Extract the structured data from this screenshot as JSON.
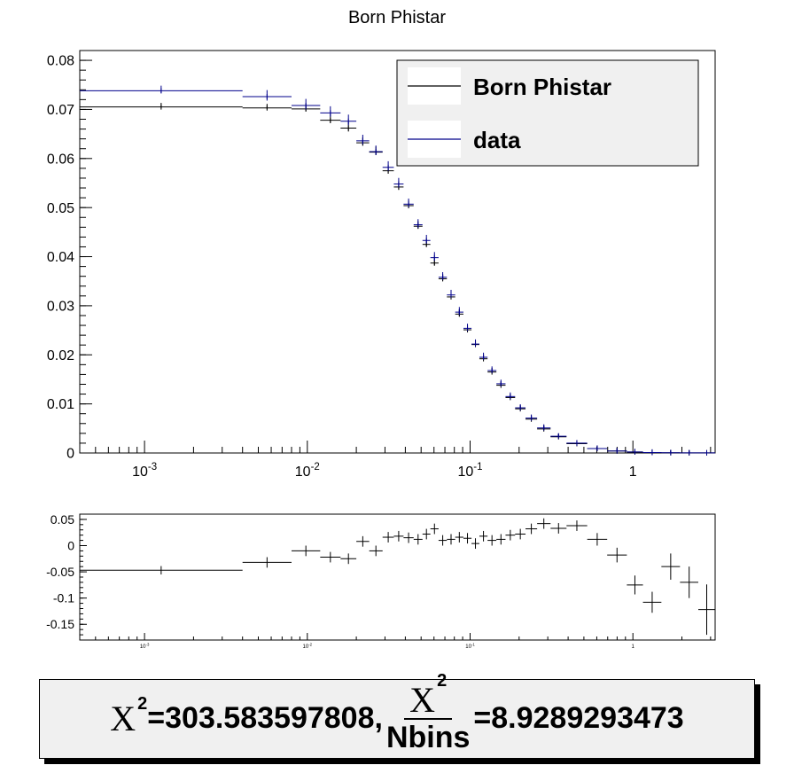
{
  "chart_data": [
    {
      "type": "scatter",
      "title": "Born Phistar",
      "xscale": "log",
      "xlim": [
        0.0004,
        3.2
      ],
      "ylim": [
        0,
        0.082
      ],
      "yticks": [
        0,
        0.01,
        0.02,
        0.03,
        0.04,
        0.05,
        0.06,
        0.07,
        0.08
      ],
      "ytick_labels": [
        "0",
        "0.01",
        "0.02",
        "0.03",
        "0.04",
        "0.05",
        "0.06",
        "0.07",
        "0.08"
      ],
      "xticks": [
        0.001,
        0.01,
        0.1,
        1
      ],
      "xtick_labels": [
        {
          "base": "10",
          "exp": "-3"
        },
        {
          "base": "10",
          "exp": "-2"
        },
        {
          "base": "10",
          "exp": "-1"
        },
        {
          "base": "1",
          "exp": ""
        }
      ],
      "legend_position": "top-right",
      "series": [
        {
          "name": "Born Phistar",
          "color": "#000000",
          "bins": [
            {
              "lo": 0.0004,
              "hi": 0.004,
              "y": 0.0705,
              "err": 0.0003
            },
            {
              "lo": 0.004,
              "hi": 0.008,
              "y": 0.0703,
              "err": 0.0003
            },
            {
              "lo": 0.008,
              "hi": 0.012,
              "y": 0.0701,
              "err": 0.0005
            },
            {
              "lo": 0.012,
              "hi": 0.016,
              "y": 0.0678,
              "err": 0.0006
            },
            {
              "lo": 0.016,
              "hi": 0.02,
              "y": 0.0662,
              "err": 0.0007
            },
            {
              "lo": 0.02,
              "hi": 0.024,
              "y": 0.0632,
              "err": 0.0006
            },
            {
              "lo": 0.024,
              "hi": 0.029,
              "y": 0.0613,
              "err": 0.0006
            },
            {
              "lo": 0.029,
              "hi": 0.034,
              "y": 0.0575,
              "err": 0.0006
            },
            {
              "lo": 0.034,
              "hi": 0.039,
              "y": 0.0542,
              "err": 0.0006
            },
            {
              "lo": 0.039,
              "hi": 0.045,
              "y": 0.0504,
              "err": 0.0005
            },
            {
              "lo": 0.045,
              "hi": 0.051,
              "y": 0.0462,
              "err": 0.0005
            },
            {
              "lo": 0.051,
              "hi": 0.057,
              "y": 0.0425,
              "err": 0.0005
            },
            {
              "lo": 0.057,
              "hi": 0.064,
              "y": 0.0387,
              "err": 0.0005
            },
            {
              "lo": 0.064,
              "hi": 0.072,
              "y": 0.0355,
              "err": 0.0004
            },
            {
              "lo": 0.072,
              "hi": 0.081,
              "y": 0.0318,
              "err": 0.0004
            },
            {
              "lo": 0.081,
              "hi": 0.091,
              "y": 0.0283,
              "err": 0.0004
            },
            {
              "lo": 0.091,
              "hi": 0.102,
              "y": 0.0251,
              "err": 0.0003
            },
            {
              "lo": 0.102,
              "hi": 0.114,
              "y": 0.0221,
              "err": 0.0003
            },
            {
              "lo": 0.114,
              "hi": 0.128,
              "y": 0.0192,
              "err": 0.0003
            },
            {
              "lo": 0.128,
              "hi": 0.145,
              "y": 0.0165,
              "err": 0.0003
            },
            {
              "lo": 0.145,
              "hi": 0.165,
              "y": 0.0138,
              "err": 0.0002
            },
            {
              "lo": 0.165,
              "hi": 0.189,
              "y": 0.0113,
              "err": 0.0002
            },
            {
              "lo": 0.189,
              "hi": 0.219,
              "y": 0.009,
              "err": 0.0002
            },
            {
              "lo": 0.219,
              "hi": 0.258,
              "y": 0.0069,
              "err": 0.0002
            },
            {
              "lo": 0.258,
              "hi": 0.312,
              "y": 0.0049,
              "err": 0.0002
            },
            {
              "lo": 0.312,
              "hi": 0.391,
              "y": 0.0033,
              "err": 0.0001
            },
            {
              "lo": 0.391,
              "hi": 0.524,
              "y": 0.0019,
              "err": 0.0001
            },
            {
              "lo": 0.524,
              "hi": 0.695,
              "y": 0.0009,
              "err": 0.0001
            },
            {
              "lo": 0.695,
              "hi": 0.918,
              "y": 0.0004,
              "err": 0.0001
            },
            {
              "lo": 0.918,
              "hi": 1.153,
              "y": 0.0002,
              "err": 0.0001
            },
            {
              "lo": 1.153,
              "hi": 1.496,
              "y": 0.0001,
              "err": 0.0001
            },
            {
              "lo": 1.496,
              "hi": 1.947,
              "y": 5e-05,
              "err": 5e-05
            },
            {
              "lo": 1.947,
              "hi": 2.522,
              "y": 3e-05,
              "err": 3e-05
            },
            {
              "lo": 2.522,
              "hi": 3.2,
              "y": 2e-05,
              "err": 2e-05
            }
          ]
        },
        {
          "name": "data",
          "color": "#00008b",
          "bins": [
            {
              "lo": 0.0004,
              "hi": 0.004,
              "y": 0.0738,
              "err": 0.0005
            },
            {
              "lo": 0.004,
              "hi": 0.008,
              "y": 0.0726,
              "err": 0.0008
            },
            {
              "lo": 0.008,
              "hi": 0.012,
              "y": 0.0708,
              "err": 0.0008
            },
            {
              "lo": 0.012,
              "hi": 0.016,
              "y": 0.0693,
              "err": 0.0008
            },
            {
              "lo": 0.016,
              "hi": 0.02,
              "y": 0.0676,
              "err": 0.0008
            },
            {
              "lo": 0.02,
              "hi": 0.024,
              "y": 0.0636,
              "err": 0.0007
            },
            {
              "lo": 0.024,
              "hi": 0.029,
              "y": 0.0614,
              "err": 0.0007
            },
            {
              "lo": 0.029,
              "hi": 0.034,
              "y": 0.0582,
              "err": 0.0007
            },
            {
              "lo": 0.034,
              "hi": 0.039,
              "y": 0.0548,
              "err": 0.0007
            },
            {
              "lo": 0.039,
              "hi": 0.045,
              "y": 0.0507,
              "err": 0.0006
            },
            {
              "lo": 0.045,
              "hi": 0.051,
              "y": 0.0465,
              "err": 0.0006
            },
            {
              "lo": 0.051,
              "hi": 0.057,
              "y": 0.0433,
              "err": 0.0006
            },
            {
              "lo": 0.057,
              "hi": 0.064,
              "y": 0.0398,
              "err": 0.0006
            },
            {
              "lo": 0.064,
              "hi": 0.072,
              "y": 0.0358,
              "err": 0.0005
            },
            {
              "lo": 0.072,
              "hi": 0.081,
              "y": 0.0322,
              "err": 0.0005
            },
            {
              "lo": 0.081,
              "hi": 0.091,
              "y": 0.0287,
              "err": 0.0005
            },
            {
              "lo": 0.091,
              "hi": 0.102,
              "y": 0.0254,
              "err": 0.0004
            },
            {
              "lo": 0.102,
              "hi": 0.114,
              "y": 0.0222,
              "err": 0.0004
            },
            {
              "lo": 0.114,
              "hi": 0.128,
              "y": 0.0195,
              "err": 0.0004
            },
            {
              "lo": 0.128,
              "hi": 0.145,
              "y": 0.0168,
              "err": 0.0003
            },
            {
              "lo": 0.145,
              "hi": 0.165,
              "y": 0.0141,
              "err": 0.0003
            },
            {
              "lo": 0.165,
              "hi": 0.189,
              "y": 0.0115,
              "err": 0.0003
            },
            {
              "lo": 0.189,
              "hi": 0.219,
              "y": 0.0092,
              "err": 0.0002
            },
            {
              "lo": 0.219,
              "hi": 0.258,
              "y": 0.0071,
              "err": 0.0002
            },
            {
              "lo": 0.258,
              "hi": 0.312,
              "y": 0.0051,
              "err": 0.0002
            },
            {
              "lo": 0.312,
              "hi": 0.391,
              "y": 0.0034,
              "err": 0.0001
            },
            {
              "lo": 0.391,
              "hi": 0.524,
              "y": 0.002,
              "err": 0.0001
            },
            {
              "lo": 0.524,
              "hi": 0.695,
              "y": 0.0009,
              "err": 0.0001
            },
            {
              "lo": 0.695,
              "hi": 0.918,
              "y": 0.0004,
              "err": 0.0001
            },
            {
              "lo": 0.918,
              "hi": 1.153,
              "y": 0.0002,
              "err": 0.0001
            },
            {
              "lo": 1.153,
              "hi": 1.496,
              "y": 0.0001,
              "err": 0.0001
            },
            {
              "lo": 1.496,
              "hi": 1.947,
              "y": 5e-05,
              "err": 5e-05
            },
            {
              "lo": 1.947,
              "hi": 2.522,
              "y": 3e-05,
              "err": 3e-05
            },
            {
              "lo": 2.522,
              "hi": 3.2,
              "y": 2e-05,
              "err": 2e-05
            }
          ]
        }
      ]
    },
    {
      "type": "scatter",
      "title": "",
      "xscale": "log",
      "xlim": [
        0.0004,
        3.2
      ],
      "ylim": [
        -0.18,
        0.06
      ],
      "yticks": [
        -0.15,
        -0.1,
        -0.05,
        0,
        0.05
      ],
      "ytick_labels": [
        "-0.15",
        "-0.1",
        "-0.05",
        "0",
        "0.05"
      ],
      "xticks": [
        0.001,
        0.01,
        0.1,
        1
      ],
      "xtick_labels": [
        {
          "base": "10",
          "exp": "-3"
        },
        {
          "base": "10",
          "exp": "-2"
        },
        {
          "base": "10",
          "exp": "-1"
        },
        {
          "base": "1",
          "exp": ""
        }
      ],
      "series": [
        {
          "color": "#000000",
          "bins": [
            {
              "lo": 0.0004,
              "hi": 0.004,
              "y": -0.047,
              "err": 0.008
            },
            {
              "lo": 0.004,
              "hi": 0.008,
              "y": -0.032,
              "err": 0.01
            },
            {
              "lo": 0.008,
              "hi": 0.012,
              "y": -0.01,
              "err": 0.01
            },
            {
              "lo": 0.012,
              "hi": 0.016,
              "y": -0.022,
              "err": 0.01
            },
            {
              "lo": 0.016,
              "hi": 0.02,
              "y": -0.025,
              "err": 0.01
            },
            {
              "lo": 0.02,
              "hi": 0.024,
              "y": 0.008,
              "err": 0.01
            },
            {
              "lo": 0.024,
              "hi": 0.029,
              "y": -0.01,
              "err": 0.01
            },
            {
              "lo": 0.029,
              "hi": 0.034,
              "y": 0.016,
              "err": 0.01
            },
            {
              "lo": 0.034,
              "hi": 0.039,
              "y": 0.018,
              "err": 0.01
            },
            {
              "lo": 0.039,
              "hi": 0.045,
              "y": 0.015,
              "err": 0.01
            },
            {
              "lo": 0.045,
              "hi": 0.051,
              "y": 0.012,
              "err": 0.01
            },
            {
              "lo": 0.051,
              "hi": 0.057,
              "y": 0.022,
              "err": 0.01
            },
            {
              "lo": 0.057,
              "hi": 0.064,
              "y": 0.032,
              "err": 0.01
            },
            {
              "lo": 0.064,
              "hi": 0.072,
              "y": 0.01,
              "err": 0.01
            },
            {
              "lo": 0.072,
              "hi": 0.081,
              "y": 0.012,
              "err": 0.01
            },
            {
              "lo": 0.081,
              "hi": 0.091,
              "y": 0.016,
              "err": 0.01
            },
            {
              "lo": 0.091,
              "hi": 0.102,
              "y": 0.014,
              "err": 0.01
            },
            {
              "lo": 0.102,
              "hi": 0.114,
              "y": 0.004,
              "err": 0.01
            },
            {
              "lo": 0.114,
              "hi": 0.128,
              "y": 0.018,
              "err": 0.01
            },
            {
              "lo": 0.128,
              "hi": 0.145,
              "y": 0.01,
              "err": 0.01
            },
            {
              "lo": 0.145,
              "hi": 0.165,
              "y": 0.012,
              "err": 0.01
            },
            {
              "lo": 0.165,
              "hi": 0.189,
              "y": 0.02,
              "err": 0.01
            },
            {
              "lo": 0.189,
              "hi": 0.219,
              "y": 0.022,
              "err": 0.01
            },
            {
              "lo": 0.219,
              "hi": 0.258,
              "y": 0.032,
              "err": 0.01
            },
            {
              "lo": 0.258,
              "hi": 0.312,
              "y": 0.042,
              "err": 0.01
            },
            {
              "lo": 0.312,
              "hi": 0.391,
              "y": 0.033,
              "err": 0.01
            },
            {
              "lo": 0.391,
              "hi": 0.524,
              "y": 0.038,
              "err": 0.01
            },
            {
              "lo": 0.524,
              "hi": 0.695,
              "y": 0.012,
              "err": 0.012
            },
            {
              "lo": 0.695,
              "hi": 0.918,
              "y": -0.018,
              "err": 0.014
            },
            {
              "lo": 0.918,
              "hi": 1.153,
              "y": -0.075,
              "err": 0.018
            },
            {
              "lo": 1.153,
              "hi": 1.496,
              "y": -0.108,
              "err": 0.02
            },
            {
              "lo": 1.496,
              "hi": 1.947,
              "y": -0.04,
              "err": 0.025
            },
            {
              "lo": 1.947,
              "hi": 2.522,
              "y": -0.07,
              "err": 0.03
            },
            {
              "lo": 2.522,
              "hi": 3.2,
              "y": -0.122,
              "err": 0.048
            }
          ]
        }
      ]
    }
  ],
  "chi2": {
    "symbol": "X",
    "sup": "2",
    "value_text": "=303.583597808,",
    "frac_denominator": "Nbins",
    "ratio_text": "=8.9289293473"
  }
}
